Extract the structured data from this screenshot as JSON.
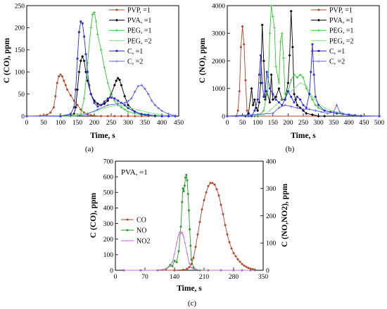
{
  "chart_data": [
    {
      "id": "a",
      "type": "line",
      "panel_label": "(a)",
      "xlabel": "Time, s",
      "ylabel": "C (CO), ppm",
      "xlim": [
        0,
        450
      ],
      "ylim": [
        0,
        250
      ],
      "xticks": [
        0,
        50,
        100,
        150,
        200,
        250,
        300,
        350,
        400,
        450
      ],
      "yticks": [
        0,
        50,
        100,
        150,
        200,
        250
      ],
      "legend_position": "top-right",
      "series": [
        {
          "name": "PVP,   =1",
          "color": "#b5442a",
          "marker": "circle",
          "x": [
            0,
            40,
            60,
            70,
            80,
            85,
            90,
            95,
            100,
            105,
            110,
            115,
            120,
            130,
            140,
            150,
            160,
            170,
            180,
            190,
            200,
            220,
            240,
            260,
            280,
            300,
            320,
            340,
            360,
            380,
            400,
            420,
            440
          ],
          "y": [
            0,
            1,
            3,
            8,
            20,
            45,
            75,
            90,
            94,
            90,
            80,
            70,
            60,
            47,
            35,
            25,
            15,
            8,
            4,
            2,
            1,
            0,
            0,
            0,
            0,
            0,
            0,
            0,
            0,
            0,
            0,
            0,
            0
          ]
        },
        {
          "name": "PVA,   =1",
          "color": "#000000",
          "marker": "diamond",
          "x": [
            0,
            100,
            130,
            140,
            145,
            150,
            155,
            160,
            165,
            170,
            175,
            180,
            190,
            200,
            210,
            220,
            230,
            240,
            250,
            260,
            265,
            270,
            275,
            280,
            290,
            300,
            320,
            340,
            360,
            380,
            400,
            420,
            440
          ],
          "y": [
            0,
            0,
            1,
            5,
            20,
            60,
            100,
            125,
            135,
            125,
            100,
            80,
            50,
            35,
            28,
            25,
            28,
            35,
            50,
            70,
            80,
            86,
            82,
            70,
            45,
            25,
            10,
            4,
            2,
            0,
            0,
            0,
            0
          ]
        },
        {
          "name": "PEG,   =1",
          "color": "#2fc72f",
          "marker": "plus",
          "x": [
            0,
            150,
            160,
            170,
            180,
            190,
            195,
            200,
            205,
            210,
            220,
            230,
            240,
            250,
            260,
            270,
            280,
            290,
            300,
            320,
            340,
            360,
            380,
            400,
            420,
            440
          ],
          "y": [
            0,
            0,
            5,
            40,
            120,
            200,
            230,
            235,
            215,
            185,
            150,
            110,
            75,
            50,
            35,
            25,
            20,
            15,
            10,
            6,
            3,
            1,
            0,
            0,
            0,
            0
          ]
        },
        {
          "name": "PEG,   =2",
          "color": "#7ee37e",
          "marker": "dot",
          "x": [
            0,
            100,
            140,
            170,
            200,
            230,
            260,
            280,
            300,
            330,
            360,
            390,
            420,
            440
          ],
          "y": [
            0,
            1,
            3,
            6,
            10,
            18,
            24,
            24,
            20,
            14,
            8,
            4,
            1,
            0
          ]
        },
        {
          "name": "C,   =1",
          "color": "#2a2ae0",
          "marker": "square",
          "x": [
            0,
            100,
            130,
            140,
            145,
            150,
            155,
            160,
            165,
            170,
            175,
            180,
            185,
            190,
            200,
            210,
            220,
            230,
            240,
            250,
            260,
            270,
            280,
            290,
            300,
            320,
            340,
            360,
            380,
            400,
            420,
            440
          ],
          "y": [
            0,
            0,
            5,
            20,
            60,
            130,
            190,
            214,
            210,
            180,
            140,
            100,
            70,
            50,
            30,
            22,
            25,
            33,
            40,
            42,
            40,
            35,
            30,
            25,
            18,
            10,
            5,
            3,
            1,
            0,
            0,
            0
          ]
        },
        {
          "name": "C,   =2",
          "color": "#5a5af0",
          "marker": "plus",
          "x": [
            0,
            150,
            180,
            210,
            240,
            270,
            290,
            300,
            310,
            320,
            330,
            340,
            350,
            360,
            370,
            380,
            390,
            400,
            420,
            440
          ],
          "y": [
            0,
            1,
            5,
            15,
            25,
            28,
            30,
            34,
            40,
            55,
            68,
            70,
            62,
            50,
            35,
            25,
            18,
            12,
            5,
            1
          ]
        }
      ]
    },
    {
      "id": "b",
      "type": "line",
      "panel_label": "(b)",
      "xlabel": "Time, s",
      "ylabel": "C (NO), ppm",
      "xlim": [
        0,
        500
      ],
      "ylim": [
        0,
        4000
      ],
      "xticks": [
        0,
        50,
        100,
        150,
        200,
        250,
        300,
        350,
        400,
        450,
        500
      ],
      "yticks": [
        0,
        1000,
        2000,
        3000,
        4000
      ],
      "legend_position": "top-right",
      "series": [
        {
          "name": "PVP,   =1",
          "color": "#b5442a",
          "marker": "circle",
          "x": [
            0,
            30,
            35,
            40,
            45,
            50,
            55,
            60,
            65,
            70,
            80,
            90,
            100,
            500
          ],
          "y": [
            0,
            0,
            200,
            900,
            2500,
            3250,
            2600,
            1300,
            200,
            0,
            0,
            0,
            0,
            0
          ]
        },
        {
          "name": "PVA,   =1",
          "color": "#000000",
          "marker": "diamond",
          "x": [
            0,
            60,
            70,
            80,
            85,
            90,
            95,
            100,
            105,
            110,
            115,
            120,
            125,
            130,
            140,
            145,
            150,
            160,
            170,
            180,
            190,
            200,
            205,
            210,
            215,
            220,
            225,
            230,
            240,
            250,
            260,
            280,
            300,
            320,
            500
          ],
          "y": [
            0,
            0,
            100,
            1000,
            400,
            600,
            300,
            200,
            500,
            1200,
            3300,
            2000,
            600,
            900,
            500,
            1500,
            600,
            700,
            1000,
            600,
            600,
            1200,
            2200,
            3800,
            2500,
            800,
            600,
            400,
            300,
            200,
            100,
            50,
            0,
            0,
            0
          ]
        },
        {
          "name": "PEG,   =1",
          "color": "#2fc72f",
          "marker": "plus",
          "x": [
            0,
            100,
            120,
            130,
            135,
            140,
            145,
            150,
            155,
            160,
            170,
            175,
            180,
            185,
            190,
            200,
            210,
            220,
            230,
            240,
            250,
            260,
            270,
            280,
            290,
            300,
            320,
            340,
            360,
            380,
            400,
            420,
            440,
            500
          ],
          "y": [
            0,
            0,
            200,
            800,
            1400,
            3000,
            4000,
            3600,
            3200,
            1800,
            1200,
            2700,
            3000,
            2100,
            800,
            900,
            1300,
            1500,
            1400,
            1500,
            1400,
            1000,
            800,
            600,
            400,
            300,
            200,
            150,
            100,
            80,
            50,
            30,
            10,
            0
          ]
        },
        {
          "name": "PEG, =2",
          "color": "#7ee37e",
          "marker": "dot",
          "x": [
            0,
            120,
            140,
            160,
            180,
            200,
            220,
            240,
            260,
            280,
            300,
            320,
            340,
            360,
            380,
            400,
            420,
            440,
            500
          ],
          "y": [
            0,
            50,
            200,
            400,
            600,
            800,
            1000,
            1200,
            1100,
            700,
            450,
            300,
            200,
            150,
            100,
            70,
            40,
            20,
            0
          ]
        },
        {
          "name": "C,   =1",
          "color": "#2a2ae0",
          "marker": "square",
          "x": [
            0,
            80,
            90,
            100,
            105,
            110,
            115,
            120,
            125,
            130,
            140,
            150,
            160,
            170,
            180,
            190,
            200,
            210,
            220,
            230,
            240,
            250,
            260,
            270,
            275,
            280,
            285,
            290,
            300,
            320,
            340,
            360,
            380,
            400,
            420,
            440,
            500
          ],
          "y": [
            0,
            0,
            200,
            600,
            1500,
            2200,
            1200,
            700,
            900,
            1600,
            1000,
            800,
            600,
            500,
            400,
            600,
            900,
            700,
            500,
            700,
            600,
            400,
            300,
            800,
            1600,
            2600,
            1500,
            700,
            400,
            200,
            150,
            100,
            80,
            50,
            30,
            10,
            0
          ]
        },
        {
          "name": "C, =2",
          "color": "#5a5af0",
          "marker": "plus",
          "x": [
            0,
            150,
            170,
            190,
            210,
            230,
            250,
            270,
            290,
            310,
            330,
            350,
            360,
            370,
            380,
            400,
            420,
            440,
            500
          ],
          "y": [
            0,
            100,
            300,
            400,
            350,
            300,
            250,
            250,
            200,
            150,
            100,
            150,
            400,
            150,
            80,
            40,
            20,
            10,
            0
          ]
        }
      ]
    },
    {
      "id": "c",
      "type": "line",
      "panel_label": "(c)",
      "annotation": "PVA,  =1",
      "xlabel": "Time, s",
      "ylabel": "C (CO), ppm",
      "ylabel_right": "C (NO,NO2), ppm",
      "xlim": [
        0,
        350
      ],
      "ylim": [
        0,
        700
      ],
      "ylim_right": [
        0,
        400
      ],
      "xticks": [
        0,
        70,
        140,
        210,
        280,
        350
      ],
      "yticks": [
        0,
        100,
        200,
        300,
        400,
        500,
        600,
        700
      ],
      "yticks_right": [
        0,
        100,
        200,
        300,
        400
      ],
      "legend_position": "left",
      "series": [
        {
          "name": "CO",
          "axis": "left",
          "color": "#b5442a",
          "marker": "circle",
          "x": [
            20,
            60,
            100,
            140,
            160,
            170,
            175,
            180,
            185,
            190,
            195,
            200,
            205,
            210,
            215,
            220,
            225,
            230,
            235,
            240,
            245,
            250,
            255,
            260,
            265,
            270,
            275,
            280,
            285,
            290,
            295,
            300,
            305,
            310,
            315,
            320,
            325,
            330
          ],
          "y": [
            0,
            0,
            0,
            0,
            3,
            10,
            20,
            40,
            80,
            150,
            230,
            310,
            390,
            450,
            500,
            540,
            560,
            560,
            550,
            520,
            480,
            420,
            360,
            290,
            230,
            180,
            140,
            110,
            90,
            70,
            55,
            40,
            30,
            22,
            15,
            10,
            7,
            5
          ]
        },
        {
          "name": "NO",
          "axis": "right",
          "color": "#2a9a2a",
          "marker": "circle",
          "x": [
            20,
            60,
            100,
            120,
            130,
            135,
            140,
            145,
            150,
            155,
            158,
            160,
            162,
            164,
            166,
            168,
            170,
            172,
            174,
            176,
            178,
            180,
            185,
            190,
            200,
            220,
            250,
            280,
            300,
            320,
            330
          ],
          "y": [
            0,
            0,
            0,
            5,
            20,
            15,
            35,
            30,
            70,
            160,
            250,
            300,
            290,
            310,
            340,
            350,
            330,
            280,
            220,
            150,
            90,
            40,
            10,
            3,
            0,
            0,
            0,
            0,
            0,
            0,
            0
          ]
        },
        {
          "name": "NO2",
          "axis": "right",
          "color": "#c866e6",
          "marker": "dot",
          "x": [
            20,
            60,
            100,
            120,
            130,
            135,
            140,
            145,
            148,
            150,
            152,
            154,
            156,
            158,
            160,
            162,
            165,
            170,
            175,
            180,
            185,
            190,
            200,
            220,
            250,
            280,
            300,
            320,
            330
          ],
          "y": [
            0,
            0,
            0,
            5,
            15,
            30,
            60,
            100,
            120,
            130,
            140,
            140,
            135,
            140,
            130,
            120,
            100,
            60,
            25,
            10,
            5,
            3,
            1,
            0,
            0,
            0,
            0,
            0,
            0
          ]
        }
      ]
    }
  ]
}
